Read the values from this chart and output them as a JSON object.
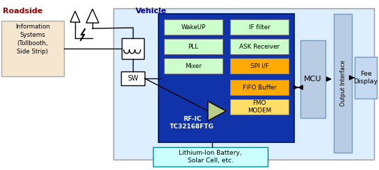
{
  "title_roadside": "Roadside",
  "title_vehicle": "Vehicle",
  "info_box_text": "Information\nSystems\n(Tollbooth,\nSide Strip)",
  "sw_label": "SW",
  "rfic_label": "RF-IC\nTC32168FTG",
  "mcu_label": "MCU",
  "output_iface_label": "Output Interface",
  "fee_display_label": "Fee\nDisplay",
  "battery_label": "Lithium-Ion Battery,\nSolar Cell, etc.",
  "ic_blocks": [
    {
      "label": "WakeUP",
      "col": 0,
      "row": 0,
      "color": "#ccffcc"
    },
    {
      "label": "IF filter",
      "col": 1,
      "row": 0,
      "color": "#ccffcc"
    },
    {
      "label": "PLL",
      "col": 0,
      "row": 1,
      "color": "#ccffcc"
    },
    {
      "label": "ASK Receiver",
      "col": 1,
      "row": 1,
      "color": "#ccffcc"
    },
    {
      "label": "Mixer",
      "col": 0,
      "row": 2,
      "color": "#ccffcc"
    },
    {
      "label": "SPI I/F",
      "col": 1,
      "row": 2,
      "color": "#ffaa00"
    },
    {
      "label": "FIFO Buffer",
      "col": 1,
      "row": 3,
      "color": "#ffaa00"
    },
    {
      "label": "FMO\nMODEM",
      "col": 1,
      "row": 4,
      "color": "#ffdd66"
    }
  ],
  "colors": {
    "vehicle_bg": "#ddeeff",
    "rfic_bg": "#1133aa",
    "info_box_bg": "#f5e6d0",
    "battery_box_bg": "#ccffff",
    "mcu_bg": "#b8cce4",
    "output_iface_bg": "#b8cce4",
    "fee_display_bg": "#c5d9f1",
    "roadside_text": "#990000",
    "vehicle_text": "#000099"
  }
}
